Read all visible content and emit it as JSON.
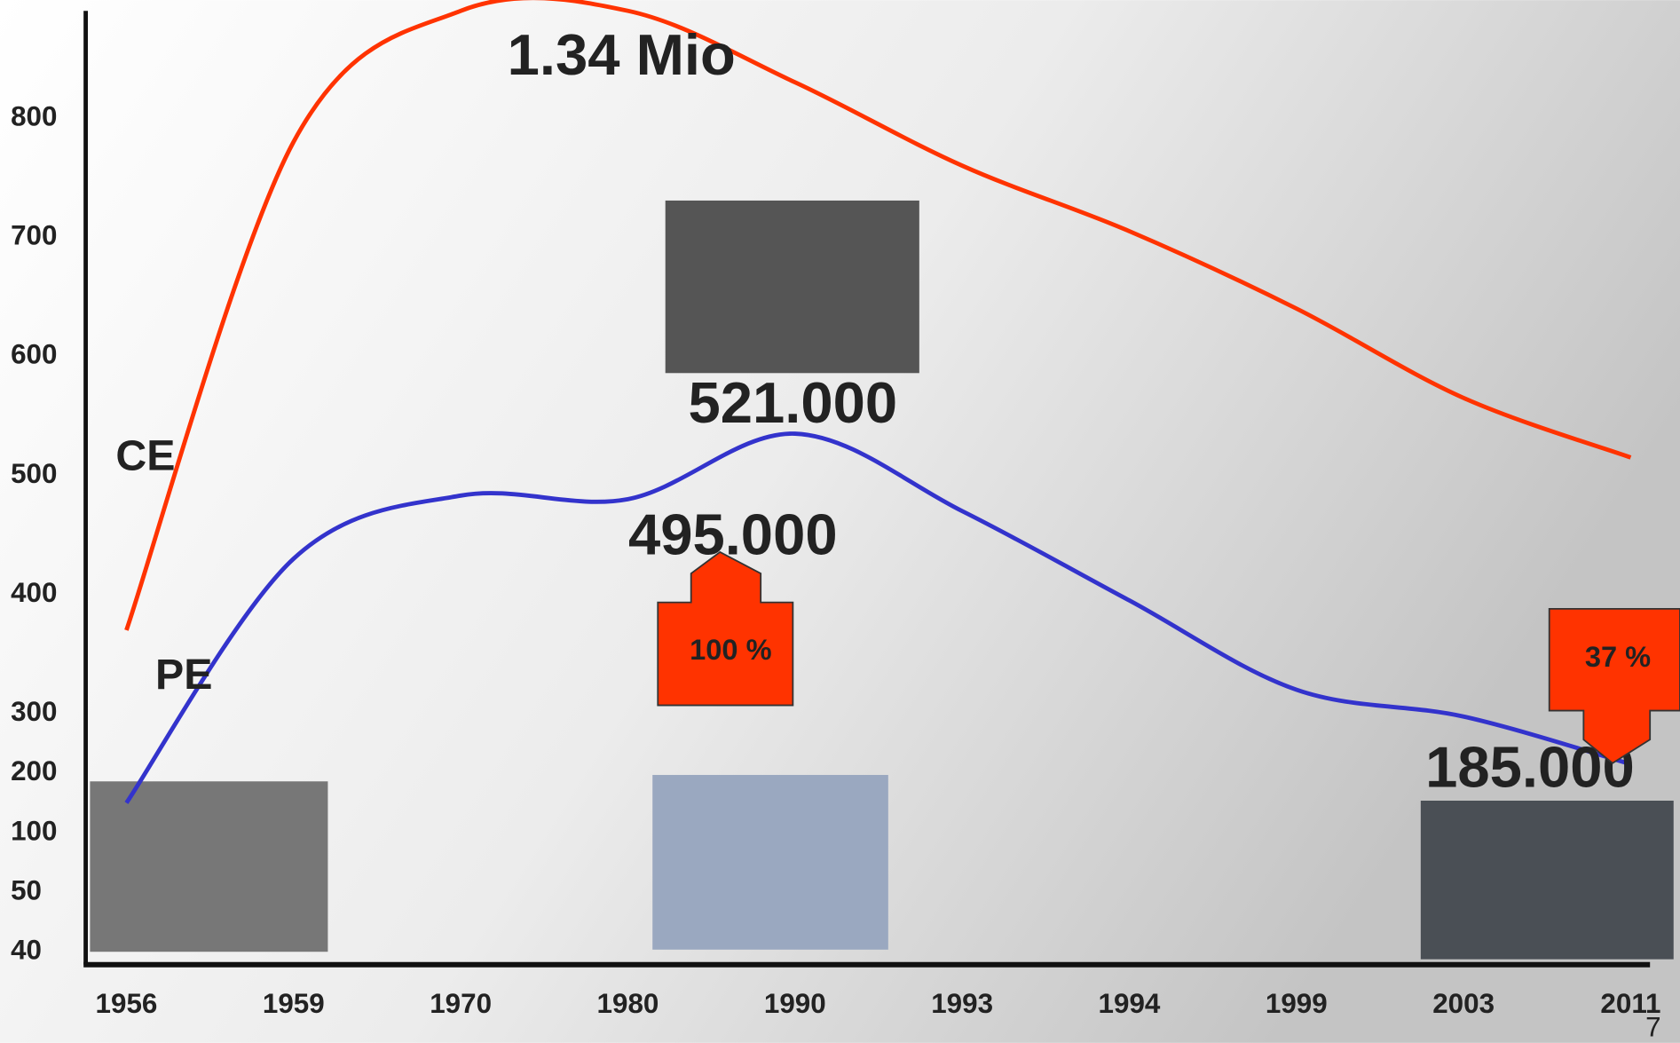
{
  "chart_data": {
    "type": "line",
    "categories": [
      "1956",
      "1959",
      "1970",
      "1980",
      "1990",
      "1993",
      "1994",
      "1999",
      "2003",
      "2011"
    ],
    "series": [
      {
        "name": "CE",
        "color": "#ff3300",
        "values": [
          370,
          780,
          890,
          890,
          830,
          760,
          705,
          640,
          565,
          515
        ]
      },
      {
        "name": "PE",
        "color": "#3333cc",
        "values": [
          150,
          430,
          483,
          480,
          535,
          470,
          395,
          320,
          295,
          215
        ]
      }
    ],
    "yticks": [
      40,
      50,
      100,
      200,
      300,
      400,
      500,
      600,
      700,
      800
    ],
    "annotations": [
      "1.34 Mio",
      "521.000",
      "495.000",
      "185.000",
      "100 %",
      "37 %"
    ],
    "page_number": "7"
  }
}
